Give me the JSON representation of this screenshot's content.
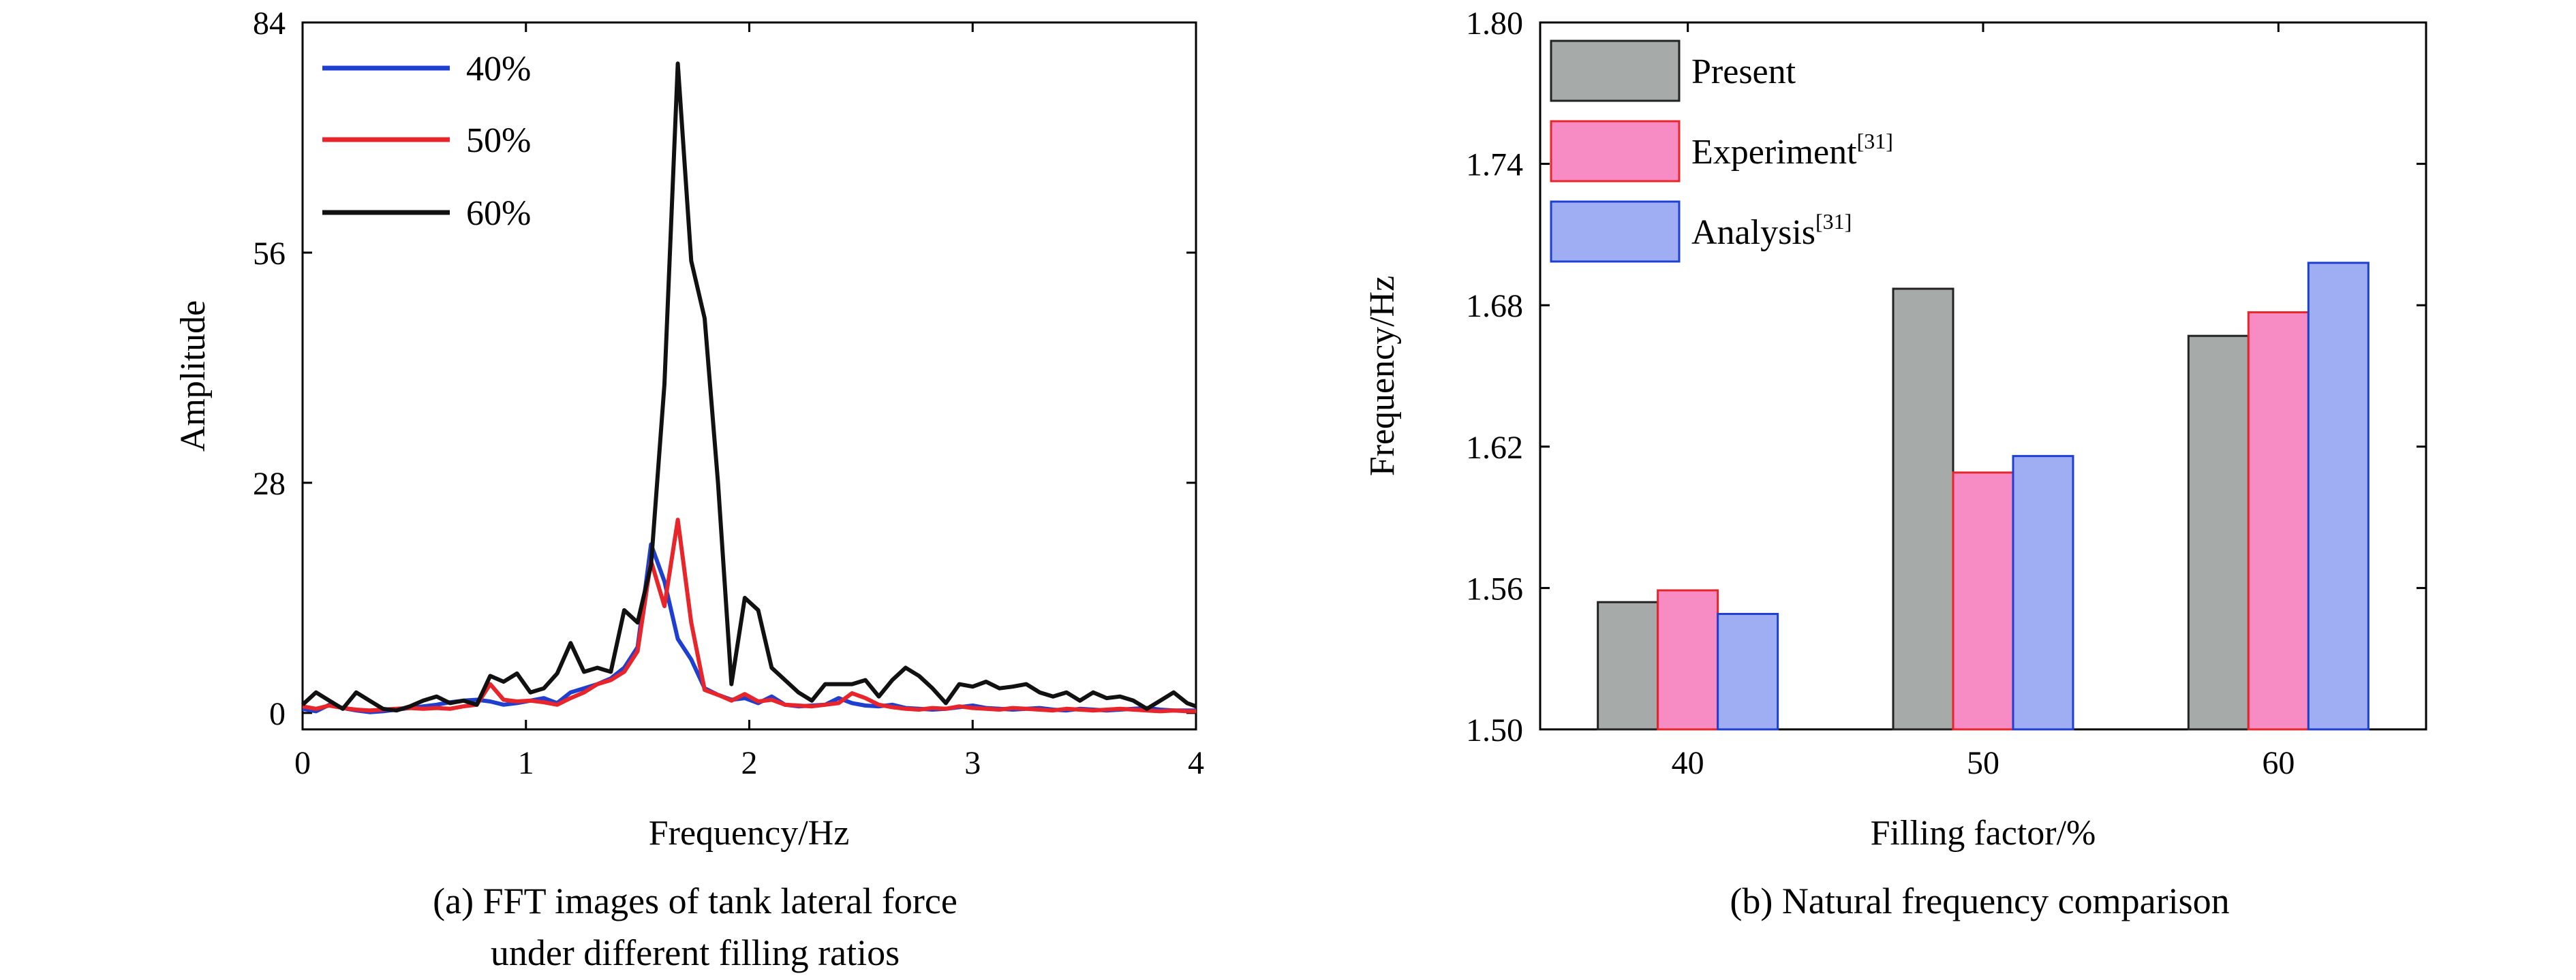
{
  "chart_data": [
    {
      "type": "line",
      "title": "",
      "xlabel": "Frequency/Hz",
      "ylabel": "Amplitude",
      "xlim": [
        0,
        4
      ],
      "ylim": [
        -2,
        84
      ],
      "xticks": [
        "0",
        "1",
        "2",
        "3",
        "4"
      ],
      "xtick_values": [
        0,
        1,
        2,
        3,
        4
      ],
      "yticks": [
        "0",
        "28",
        "56",
        "84"
      ],
      "ytick_values": [
        0,
        28,
        56,
        84
      ],
      "grid": false,
      "legend_position": "top-left",
      "caption_line1": "(a) FFT images of tank lateral force",
      "caption_line2": "under different filling ratios",
      "series": [
        {
          "name": "40%",
          "color": "#1f3fd1",
          "x": [
            0,
            0.06,
            0.12,
            0.18,
            0.24,
            0.3,
            0.36,
            0.42,
            0.48,
            0.54,
            0.6,
            0.66,
            0.72,
            0.78,
            0.84,
            0.9,
            0.96,
            1.02,
            1.08,
            1.14,
            1.2,
            1.26,
            1.32,
            1.38,
            1.44,
            1.5,
            1.56,
            1.62,
            1.68,
            1.74,
            1.8,
            1.86,
            1.92,
            1.98,
            2.04,
            2.1,
            2.16,
            2.22,
            2.28,
            2.34,
            2.4,
            2.46,
            2.52,
            2.58,
            2.64,
            2.7,
            2.76,
            2.82,
            2.88,
            2.94,
            3.0,
            3.06,
            3.12,
            3.18,
            3.24,
            3.3,
            3.36,
            3.42,
            3.48,
            3.54,
            3.6,
            3.66,
            3.72,
            3.78,
            3.84,
            3.9,
            3.96,
            4.0
          ],
          "values": [
            0.5,
            0.2,
            1.0,
            0.6,
            0.3,
            0.1,
            0.2,
            0.4,
            0.6,
            0.8,
            1.0,
            1.3,
            1.5,
            1.6,
            1.4,
            1.0,
            1.2,
            1.5,
            1.8,
            1.2,
            2.5,
            3.0,
            3.5,
            4.2,
            5.5,
            8.0,
            20.5,
            16.0,
            9.0,
            6.5,
            3.0,
            2.2,
            1.6,
            1.8,
            1.2,
            2.0,
            1.0,
            0.8,
            0.9,
            1.0,
            1.8,
            1.2,
            0.9,
            0.8,
            1.0,
            0.6,
            0.5,
            0.4,
            0.5,
            0.7,
            0.9,
            0.6,
            0.5,
            0.4,
            0.5,
            0.6,
            0.4,
            0.3,
            0.5,
            0.4,
            0.3,
            0.4,
            0.5,
            0.6,
            0.4,
            0.3,
            0.3,
            0.3
          ]
        },
        {
          "name": "50%",
          "color": "#e8252a",
          "x": [
            0,
            0.06,
            0.12,
            0.18,
            0.24,
            0.3,
            0.36,
            0.42,
            0.48,
            0.54,
            0.6,
            0.66,
            0.72,
            0.78,
            0.84,
            0.9,
            0.96,
            1.02,
            1.08,
            1.14,
            1.2,
            1.26,
            1.32,
            1.38,
            1.44,
            1.5,
            1.56,
            1.62,
            1.68,
            1.74,
            1.8,
            1.86,
            1.92,
            1.98,
            2.04,
            2.1,
            2.16,
            2.22,
            2.28,
            2.34,
            2.4,
            2.46,
            2.52,
            2.58,
            2.64,
            2.7,
            2.76,
            2.82,
            2.88,
            2.94,
            3.0,
            3.06,
            3.12,
            3.18,
            3.24,
            3.3,
            3.36,
            3.42,
            3.48,
            3.54,
            3.6,
            3.66,
            3.72,
            3.78,
            3.84,
            3.9,
            3.96,
            4.0
          ],
          "values": [
            0.8,
            0.5,
            0.9,
            0.6,
            0.4,
            0.3,
            0.4,
            0.5,
            0.6,
            0.5,
            0.6,
            0.5,
            0.8,
            1.0,
            3.5,
            1.6,
            1.4,
            1.5,
            1.3,
            1.0,
            1.8,
            2.5,
            3.5,
            4.0,
            5.0,
            7.5,
            18.5,
            13.0,
            23.5,
            11.0,
            2.8,
            2.2,
            1.5,
            2.3,
            1.4,
            1.6,
            1.0,
            0.9,
            0.8,
            1.0,
            1.2,
            2.4,
            1.8,
            1.0,
            0.7,
            0.5,
            0.4,
            0.6,
            0.5,
            0.8,
            0.6,
            0.5,
            0.4,
            0.6,
            0.5,
            0.4,
            0.3,
            0.5,
            0.4,
            0.3,
            0.4,
            0.5,
            0.4,
            0.3,
            0.2,
            0.3,
            0.2,
            0.2
          ]
        },
        {
          "name": "60%",
          "color": "#111111",
          "x": [
            0,
            0.06,
            0.12,
            0.18,
            0.24,
            0.3,
            0.36,
            0.42,
            0.48,
            0.54,
            0.6,
            0.66,
            0.72,
            0.78,
            0.84,
            0.9,
            0.96,
            1.02,
            1.08,
            1.14,
            1.2,
            1.26,
            1.32,
            1.38,
            1.44,
            1.5,
            1.56,
            1.62,
            1.68,
            1.74,
            1.8,
            1.86,
            1.92,
            1.98,
            2.04,
            2.1,
            2.16,
            2.22,
            2.28,
            2.34,
            2.4,
            2.46,
            2.52,
            2.58,
            2.64,
            2.7,
            2.76,
            2.82,
            2.88,
            2.94,
            3.0,
            3.06,
            3.12,
            3.18,
            3.24,
            3.3,
            3.36,
            3.42,
            3.48,
            3.54,
            3.6,
            3.66,
            3.72,
            3.78,
            3.84,
            3.9,
            3.96,
            4.0
          ],
          "values": [
            1.0,
            2.5,
            1.5,
            0.5,
            2.5,
            1.5,
            0.5,
            0.3,
            0.8,
            1.5,
            2.0,
            1.2,
            1.5,
            1.0,
            4.5,
            3.8,
            4.8,
            2.5,
            3.0,
            4.8,
            8.5,
            5.0,
            5.5,
            5.0,
            12.5,
            11.0,
            18.0,
            40.0,
            79.0,
            55.0,
            48.0,
            28.0,
            3.5,
            14.0,
            12.5,
            5.5,
            4.0,
            2.5,
            1.5,
            3.5,
            3.5,
            3.5,
            4.0,
            2.0,
            4.0,
            5.5,
            4.5,
            3.0,
            1.2,
            3.5,
            3.2,
            3.8,
            3.0,
            3.2,
            3.5,
            2.5,
            2.0,
            2.5,
            1.5,
            2.5,
            1.8,
            2.0,
            1.5,
            0.5,
            1.5,
            2.5,
            1.2,
            0.8
          ]
        }
      ]
    },
    {
      "type": "bar",
      "title": "",
      "xlabel": "Filling factor/%",
      "ylabel": "Frequency/Hz",
      "categories": [
        "40",
        "50",
        "60"
      ],
      "ylim": [
        1.5,
        1.8
      ],
      "yticks": [
        "1.50",
        "1.56",
        "1.62",
        "1.68",
        "1.74",
        "1.80"
      ],
      "ytick_values": [
        1.5,
        1.56,
        1.62,
        1.68,
        1.74,
        1.8
      ],
      "grid": false,
      "legend_position": "top-left",
      "caption": "(b) Natural frequency comparison",
      "series": [
        {
          "name": "Present",
          "sup": "",
          "fill": "#a6aaa9",
          "stroke": "#222222",
          "values": [
            1.554,
            1.687,
            1.667
          ]
        },
        {
          "name": "Experiment",
          "sup": "[31]",
          "fill": "#f78cc4",
          "stroke": "#e8252a",
          "values": [
            1.559,
            1.609,
            1.677
          ]
        },
        {
          "name": "Analysis",
          "sup": "[31]",
          "fill": "#9fadf2",
          "stroke": "#1f3fd1",
          "values": [
            1.549,
            1.616,
            1.698
          ]
        }
      ]
    }
  ]
}
